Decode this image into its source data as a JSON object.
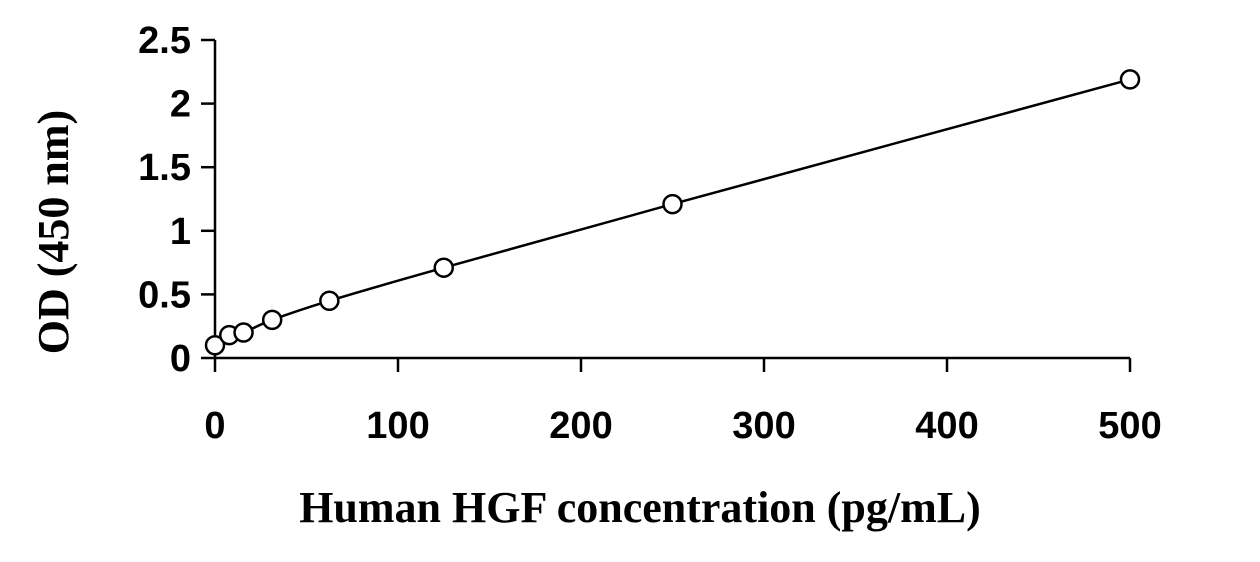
{
  "chart_data": {
    "type": "scatter",
    "title": "",
    "xlabel": "Human HGF concentration (pg/mL)",
    "ylabel": "OD (450 nm)",
    "xlim": [
      0,
      500
    ],
    "ylim": [
      0,
      2.5
    ],
    "x_ticks": [
      0,
      100,
      200,
      300,
      400,
      500
    ],
    "x_tick_labels": [
      "0",
      "100",
      "200",
      "300",
      "400",
      "500"
    ],
    "y_ticks": [
      0,
      0.5,
      1,
      1.5,
      2,
      2.5
    ],
    "y_tick_labels": [
      "0",
      "0.5",
      "1",
      "1.5",
      "2",
      "2.5"
    ],
    "grid": false,
    "legend": "none",
    "series": [
      {
        "marker": "open-circle",
        "trendline": "smooth-fit",
        "points": [
          {
            "x": 0,
            "y": 0.1
          },
          {
            "x": 7.8,
            "y": 0.18
          },
          {
            "x": 15.6,
            "y": 0.2
          },
          {
            "x": 31.25,
            "y": 0.3
          },
          {
            "x": 62.5,
            "y": 0.45
          },
          {
            "x": 125,
            "y": 0.71
          },
          {
            "x": 250,
            "y": 1.21
          },
          {
            "x": 500,
            "y": 2.19
          }
        ]
      }
    ],
    "colors": {
      "axis": "#000000",
      "line": "#000000",
      "marker_fill": "#ffffff"
    }
  }
}
